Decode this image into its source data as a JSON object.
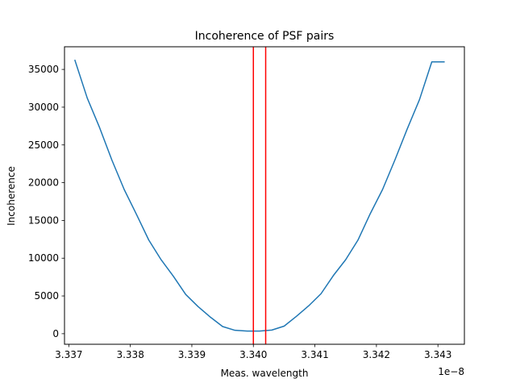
{
  "chart_data": {
    "type": "line",
    "title": "Incoherence of PSF pairs",
    "xlabel": "Meas. wavelength",
    "ylabel": "Incoherence",
    "x_offset_label": "1e−8",
    "x_scale": 1e-08,
    "xlim": [
      3.33693,
      3.34343
    ],
    "ylim": [
      -1400,
      38000
    ],
    "xticks": [
      3.337,
      3.338,
      3.339,
      3.34,
      3.341,
      3.342,
      3.343
    ],
    "xtick_labels": [
      "3.337",
      "3.338",
      "3.339",
      "3.340",
      "3.341",
      "3.342",
      "3.343"
    ],
    "yticks": [
      0,
      5000,
      10000,
      15000,
      20000,
      25000,
      30000,
      35000
    ],
    "ytick_labels": [
      "0",
      "5000",
      "10000",
      "15000",
      "20000",
      "25000",
      "30000",
      "35000"
    ],
    "grid": false,
    "series": [
      {
        "color": "#1f77b4",
        "x": [
          3.3371,
          3.3373,
          3.3375,
          3.3377,
          3.3379,
          3.3381,
          3.3383,
          3.3385,
          3.3387,
          3.3389,
          3.3391,
          3.3393,
          3.3395,
          3.3397,
          3.3399,
          3.3401,
          3.3403,
          3.3405,
          3.3407,
          3.3409,
          3.3411,
          3.3413,
          3.3415,
          3.3417,
          3.3419,
          3.3421,
          3.3423,
          3.3425,
          3.3427,
          3.3429,
          3.3431
        ],
        "y": [
          36200,
          31200,
          27300,
          23000,
          19100,
          15800,
          12400,
          9800,
          7600,
          5200,
          3600,
          2200,
          950,
          450,
          350,
          350,
          480,
          1000,
          2300,
          3700,
          5300,
          7700,
          9800,
          12400,
          15900,
          19100,
          23000,
          27100,
          31000,
          36000,
          36000
        ]
      }
    ],
    "vlines": [
      {
        "x": 3.34,
        "color": "#ff0000"
      },
      {
        "x": 3.3402,
        "color": "#ff0000"
      }
    ]
  }
}
